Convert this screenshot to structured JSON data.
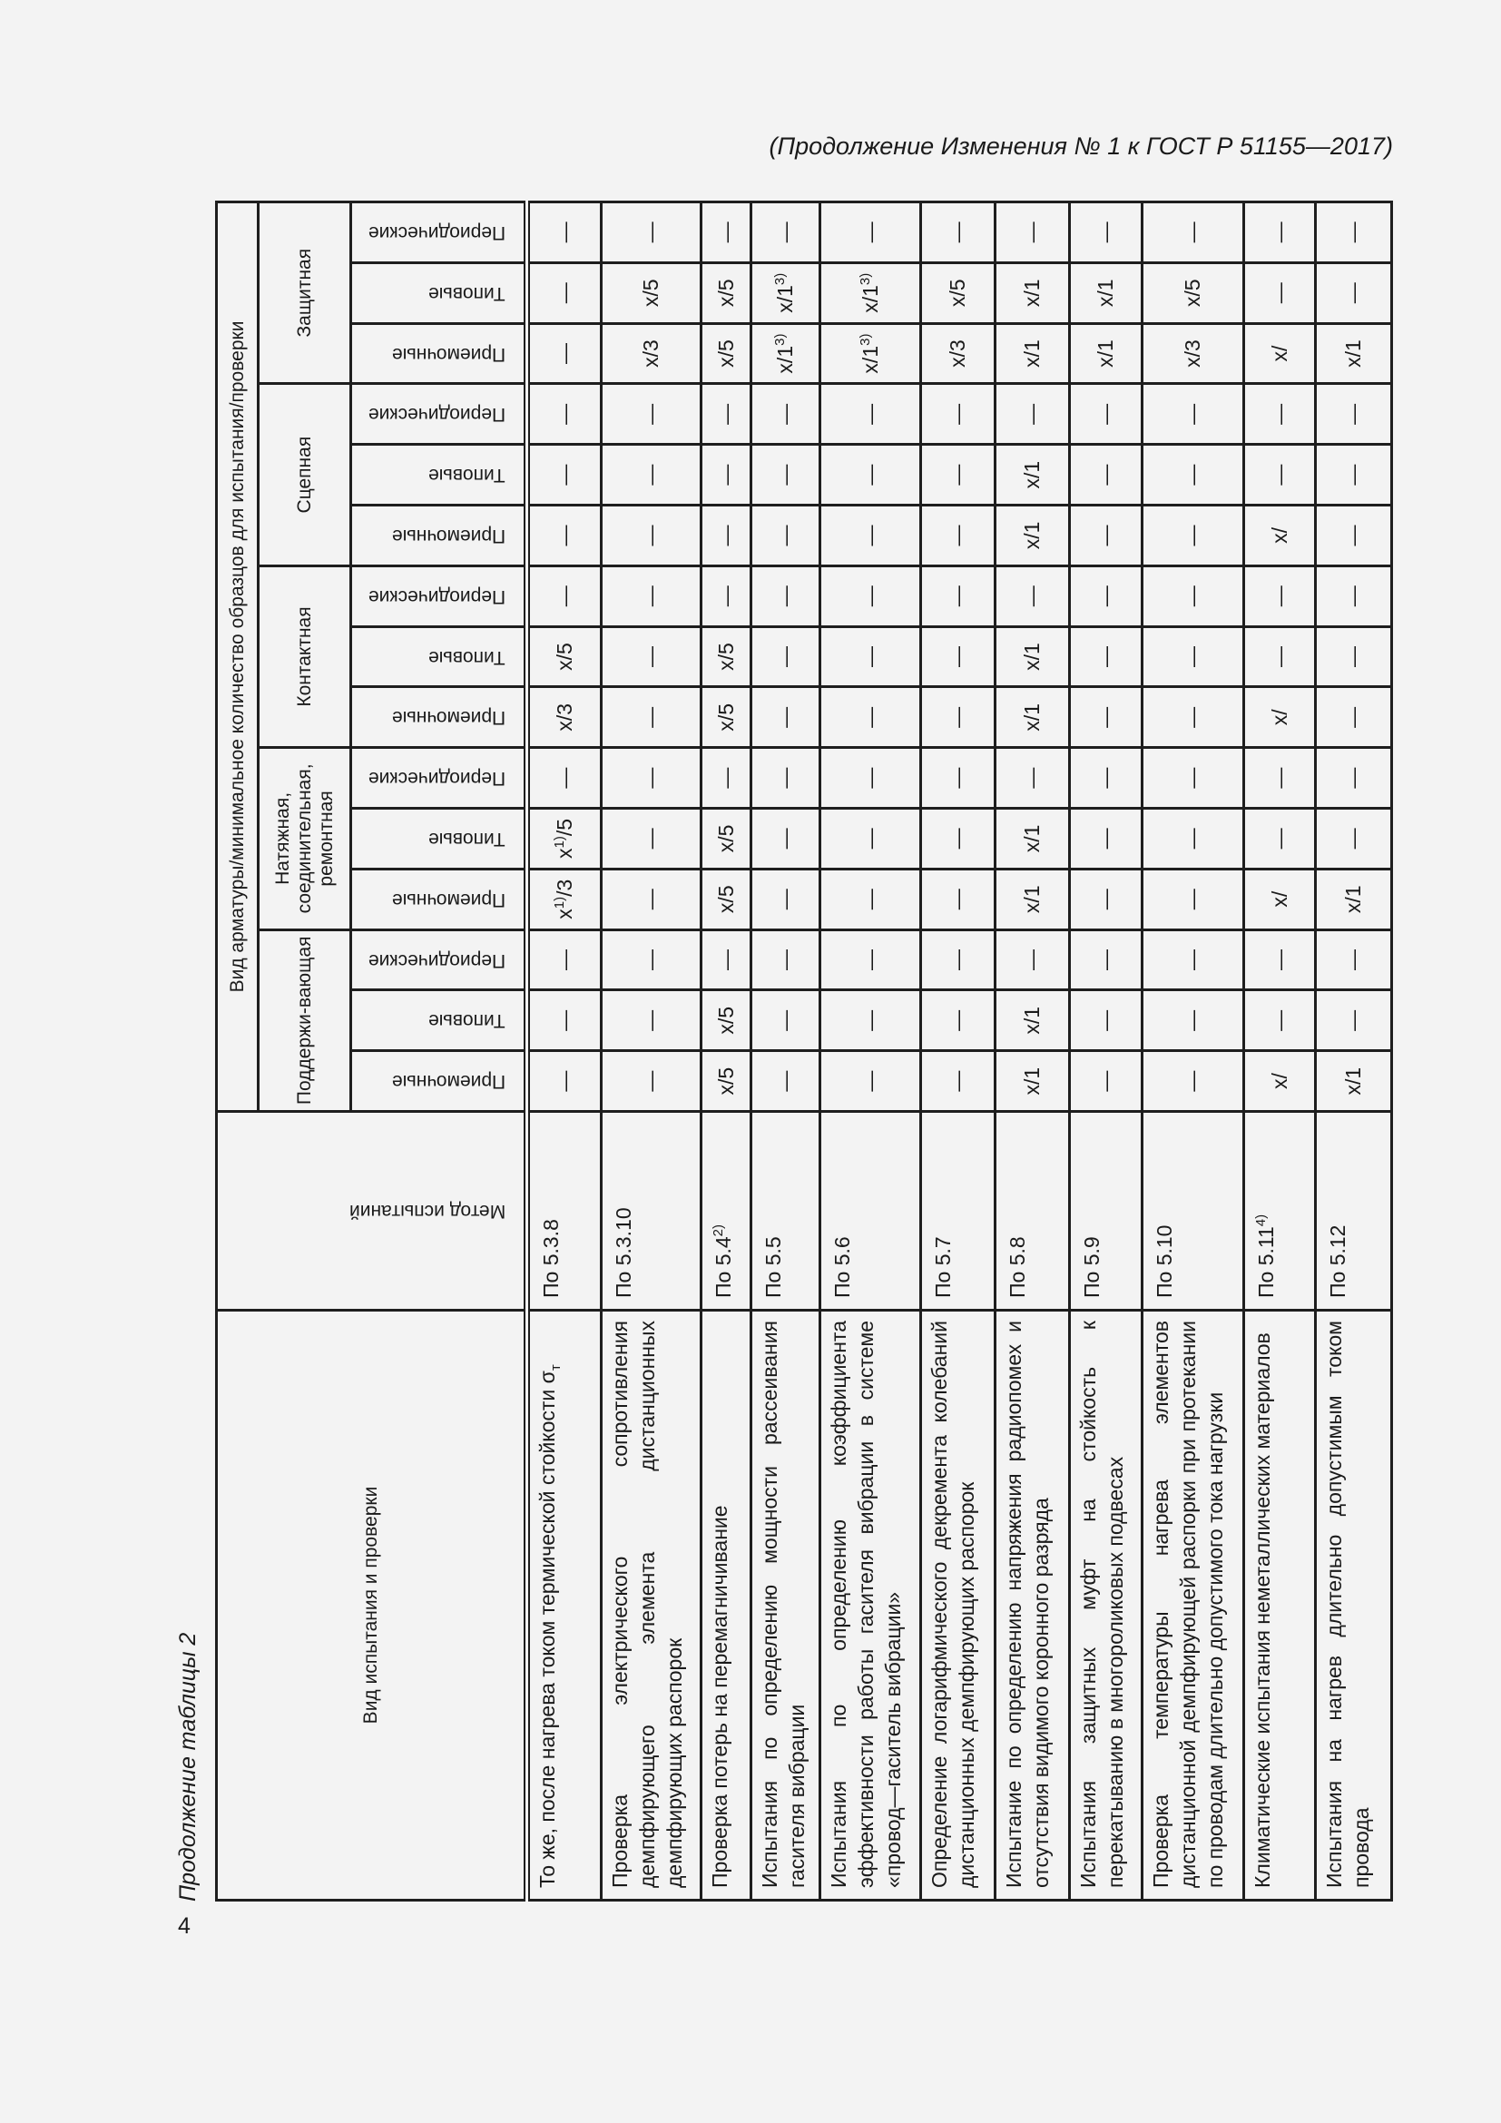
{
  "running_head": "(Продолжение Изменения № 1 к ГОСТ Р 51155—2017)",
  "caption": "Продолжение таблицы 2",
  "page_number": "4",
  "header": {
    "test_type": "Вид испытания и проверки",
    "method": "Метод испытаний",
    "fitting_group": "Вид арматуры/минимальное количество образцов для испытания/проверки",
    "groups": [
      "Поддержи-вающая",
      "Натяжная, соединительная, ремонтная",
      "Контактная",
      "Сцепная",
      "Защитная"
    ],
    "subs": [
      "Приемочные",
      "Типовые",
      "Периодические"
    ]
  },
  "rows": [
    {
      "name": "То же, после нагрева током термической стойкости σ",
      "name_sub": "т",
      "method": "По 5.3.8",
      "cells": [
        "—",
        "—",
        "—",
        {
          "base": "x",
          "sup": "1)",
          "tail": "/3"
        },
        {
          "base": "x",
          "sup": "1)",
          "tail": "/5"
        },
        "—",
        "x/3",
        "x/5",
        "—",
        "—",
        "—",
        "—",
        "—",
        "—",
        "—"
      ]
    },
    {
      "name": "Проверка электрического сопротивления демпфирующего элемента дистанционных демпфирующих распорок",
      "method": "По 5.3.10",
      "cells": [
        "—",
        "—",
        "—",
        "—",
        "—",
        "—",
        "—",
        "—",
        "—",
        "—",
        "—",
        "—",
        "x/3",
        "x/5",
        "—"
      ]
    },
    {
      "name": "Проверка потерь на перемагничивание",
      "method": "По 5.4",
      "method_sup": "2)",
      "cells": [
        "x/5",
        "x/5",
        "—",
        "x/5",
        "x/5",
        "—",
        "x/5",
        "x/5",
        "—",
        "—",
        "—",
        "—",
        "x/5",
        "x/5",
        "—"
      ]
    },
    {
      "name": "Испытания по определению мощности рассеивания гасителя вибрации",
      "method": "По 5.5",
      "cells": [
        "—",
        "—",
        "—",
        "—",
        "—",
        "—",
        "—",
        "—",
        "—",
        "—",
        "—",
        "—",
        {
          "base": "x/1",
          "sup": "3)",
          "tail": ""
        },
        {
          "base": "x/1",
          "sup": "3)",
          "tail": ""
        },
        "—"
      ]
    },
    {
      "name": "Испытания по определению коэффициента эффективности работы гасителя вибрации в системе «провод—гаситель вибрации»",
      "method": "По 5.6",
      "cells": [
        "—",
        "—",
        "—",
        "—",
        "—",
        "—",
        "—",
        "—",
        "—",
        "—",
        "—",
        "—",
        {
          "base": "x/1",
          "sup": "3)",
          "tail": ""
        },
        {
          "base": "x/1",
          "sup": "3)",
          "tail": ""
        },
        "—"
      ]
    },
    {
      "name": "Определение логарифмического декремента колебаний дистанционных демпфирующих распорок",
      "method": "По 5.7",
      "cells": [
        "—",
        "—",
        "—",
        "—",
        "—",
        "—",
        "—",
        "—",
        "—",
        "—",
        "—",
        "—",
        "x/3",
        "x/5",
        "—"
      ]
    },
    {
      "name": "Испытание по определению напряжения радиопомех и отсутствия видимого коронного разряда",
      "method": "По 5.8",
      "cells": [
        "x/1",
        "x/1",
        "—",
        "x/1",
        "x/1",
        "—",
        "x/1",
        "x/1",
        "—",
        "x/1",
        "x/1",
        "—",
        "x/1",
        "x/1",
        "—"
      ]
    },
    {
      "name": "Испытания защитных муфт на стойкость к перекатыванию в многороликовых подвесах",
      "method": "По 5.9",
      "cells": [
        "—",
        "—",
        "—",
        "—",
        "—",
        "—",
        "—",
        "—",
        "—",
        "—",
        "—",
        "—",
        "x/1",
        "x/1",
        "—"
      ]
    },
    {
      "name": "Проверка температуры нагрева элементов дистанционной демпфирующей распорки при протекании по проводам длительно допустимого тока нагрузки",
      "method": "По 5.10",
      "cells": [
        "—",
        "—",
        "—",
        "—",
        "—",
        "—",
        "—",
        "—",
        "—",
        "—",
        "—",
        "—",
        "x/3",
        "x/5",
        "—"
      ]
    },
    {
      "name": "Климатические испытания неметаллических материалов",
      "method": "По 5.11",
      "method_sup": "4)",
      "cells": [
        "x/",
        "—",
        "—",
        "x/",
        "—",
        "—",
        "x/",
        "—",
        "—",
        "x/",
        "—",
        "—",
        "x/",
        "—",
        "—"
      ]
    },
    {
      "name": "Испытания на нагрев длительно допустимым током провода",
      "method": "По 5.12",
      "cells": [
        "x/1",
        "—",
        "—",
        "x/1",
        "—",
        "—",
        "—",
        "—",
        "—",
        "—",
        "—",
        "—",
        "x/1",
        "—",
        "—"
      ]
    }
  ]
}
